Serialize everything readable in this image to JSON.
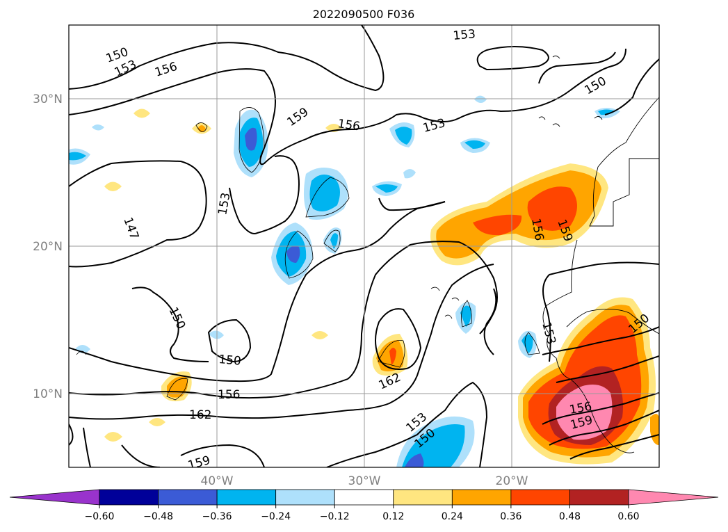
{
  "title": "2022090500 F036",
  "lat_labels": [
    "30°N",
    "20°N",
    "10°N"
  ],
  "lon_labels": [
    "40°W",
    "30°W",
    "20°W"
  ],
  "contour_labels": [
    "150",
    "153",
    "156",
    "153",
    "159",
    "156",
    "153",
    "150",
    "153",
    "147",
    "150",
    "150",
    "156",
    "162",
    "159",
    "162",
    "153",
    "150",
    "156",
    "159",
    "156",
    "159",
    "153",
    "150"
  ],
  "colorbar": {
    "ticks": [
      "−0.60",
      "−0.48",
      "−0.36",
      "−0.24",
      "−0.12",
      "0.12",
      "0.24",
      "0.36",
      "0.48",
      "0.60"
    ],
    "colors": [
      "#9933cc",
      "#000099",
      "#3b5bd6",
      "#00b4f0",
      "#aee0fb",
      "#ffffff",
      "#ffe680",
      "#ffa500",
      "#ff4500",
      "#b22222",
      "#ff88b0"
    ]
  }
}
